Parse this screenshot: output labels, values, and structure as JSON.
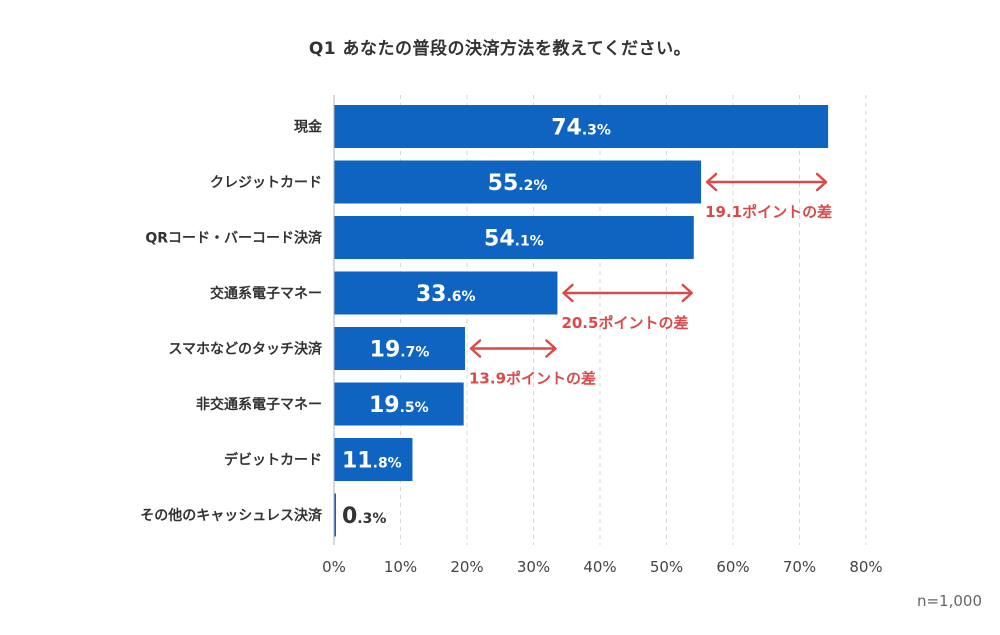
{
  "chart_data": {
    "type": "bar",
    "orientation": "horizontal",
    "title": "Q1 あなたの普段の決済方法を教えてください。",
    "categories": [
      "現金",
      "クレジットカード",
      "QRコード・バーコード決済",
      "交通系電子マネー",
      "スマホなどのタッチ決済",
      "非交通系電子マネー",
      "デビットカード",
      "その他のキャッシュレス決済"
    ],
    "values": [
      74.3,
      55.2,
      54.1,
      33.6,
      19.7,
      19.5,
      11.8,
      0.3
    ],
    "value_labels": [
      {
        "int": "74",
        "dec": ".3%"
      },
      {
        "int": "55",
        "dec": ".2%"
      },
      {
        "int": "54",
        "dec": ".1%"
      },
      {
        "int": "33",
        "dec": ".6%"
      },
      {
        "int": "19",
        "dec": ".7%"
      },
      {
        "int": "19",
        "dec": ".5%"
      },
      {
        "int": "11",
        "dec": ".8%"
      },
      {
        "int": "0",
        "dec": ".3%"
      }
    ],
    "xlim": [
      0,
      80
    ],
    "xticks": [
      "0%",
      "10%",
      "20%",
      "30%",
      "40%",
      "50%",
      "60%",
      "70%",
      "80%"
    ],
    "grid": true,
    "bar_color": "#0e64c0",
    "annotation_color": "#d94a4a",
    "annotations": [
      {
        "row": 1,
        "from": 55.2,
        "to": 74.3,
        "text": "19.1ポイントの差"
      },
      {
        "row": 3,
        "from": 33.6,
        "to": 54.1,
        "text": "20.5ポイントの差"
      },
      {
        "row": 4,
        "from": 19.7,
        "to": 33.6,
        "text": "13.9ポイントの差"
      }
    ],
    "sample_size": "n=1,000"
  }
}
